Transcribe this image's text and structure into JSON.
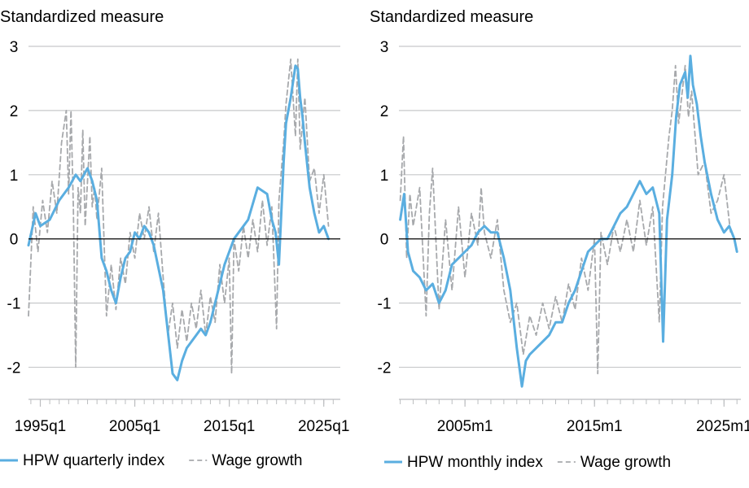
{
  "chart_data": [
    {
      "type": "line",
      "ylabel": "Standardized measure",
      "ylim": [
        -2.5,
        3
      ],
      "yticks": [
        3,
        2,
        1,
        0,
        -1,
        -2
      ],
      "xlim": [
        1993.75,
        2026.75
      ],
      "xticks": [
        {
          "label": "1995q1",
          "value": 1995
        },
        {
          "label": "2005q1",
          "value": 2005
        },
        {
          "label": "2015q1",
          "value": 2015
        },
        {
          "label": "2025q1",
          "value": 2025
        }
      ],
      "grid": true,
      "legend_position": "bottom",
      "series": [
        {
          "name": "HPW quarterly index",
          "color": "#5aaee0",
          "style": "solid",
          "x": [
            1993.75,
            1994.5,
            1995.0,
            1996.0,
            1997.0,
            1998.0,
            1998.75,
            1999.25,
            2000.0,
            2000.5,
            2001.0,
            2001.5,
            2002.0,
            2002.5,
            2003.0,
            2003.5,
            2004.0,
            2004.5,
            2005.0,
            2005.5,
            2006.0,
            2006.5,
            2007.0,
            2008.0,
            2009.0,
            2009.5,
            2010.0,
            2010.5,
            2011.0,
            2011.5,
            2012.0,
            2012.5,
            2013.0,
            2013.5,
            2014.0,
            2014.5,
            2015.0,
            2015.5,
            2016.0,
            2017.0,
            2018.0,
            2019.0,
            2019.5,
            2019.9,
            2020.25,
            2020.75,
            2021.0,
            2021.5,
            2022.0,
            2022.25,
            2022.5,
            2022.75,
            2023.0,
            2023.5,
            2024.0,
            2024.5,
            2025.0,
            2025.5
          ],
          "values": [
            -0.1,
            0.4,
            0.2,
            0.3,
            0.6,
            0.8,
            1.0,
            0.9,
            1.1,
            0.9,
            0.6,
            -0.3,
            -0.5,
            -0.8,
            -1.0,
            -0.6,
            -0.3,
            -0.2,
            0.1,
            0.0,
            0.2,
            0.1,
            -0.1,
            -0.8,
            -2.1,
            -2.2,
            -1.9,
            -1.7,
            -1.6,
            -1.5,
            -1.4,
            -1.5,
            -1.3,
            -1.0,
            -0.7,
            -0.4,
            -0.2,
            0.0,
            0.1,
            0.3,
            0.8,
            0.7,
            0.3,
            0.1,
            -0.4,
            1.2,
            1.8,
            2.2,
            2.7,
            2.65,
            2.2,
            1.9,
            1.5,
            0.8,
            0.4,
            0.1,
            0.2,
            0.0
          ]
        },
        {
          "name": "Wage growth",
          "color": "#a7a9ac",
          "style": "dashed",
          "x": [
            1993.75,
            1994.25,
            1994.75,
            1995.25,
            1995.75,
            1996.25,
            1996.75,
            1997.25,
            1997.75,
            1998.0,
            1998.25,
            1998.5,
            1998.75,
            1999.0,
            1999.25,
            1999.5,
            1999.75,
            2000.0,
            2000.25,
            2000.5,
            2000.75,
            2001.0,
            2001.5,
            2002.0,
            2002.5,
            2003.0,
            2003.5,
            2004.0,
            2004.5,
            2005.0,
            2005.5,
            2006.0,
            2006.5,
            2007.0,
            2007.5,
            2008.0,
            2008.5,
            2009.0,
            2009.5,
            2010.0,
            2010.5,
            2011.0,
            2011.5,
            2012.0,
            2012.5,
            2013.0,
            2013.5,
            2014.0,
            2014.5,
            2015.0,
            2015.25,
            2015.5,
            2016.0,
            2016.5,
            2017.0,
            2017.5,
            2018.0,
            2018.5,
            2019.0,
            2019.5,
            2020.0,
            2020.25,
            2020.75,
            2021.0,
            2021.5,
            2022.0,
            2022.25,
            2022.5,
            2023.0,
            2023.5,
            2024.0,
            2024.5,
            2025.0,
            2025.5
          ],
          "values": [
            -1.2,
            0.5,
            -0.2,
            0.6,
            0.1,
            0.9,
            0.4,
            1.5,
            2.0,
            0.7,
            2.0,
            0.5,
            -2.0,
            0.8,
            0.4,
            1.7,
            0.2,
            0.9,
            1.6,
            0.5,
            0.8,
            0.3,
            1.1,
            -1.2,
            -0.4,
            -1.1,
            -0.3,
            -0.7,
            0.1,
            -0.3,
            0.4,
            0.0,
            0.5,
            -0.2,
            0.4,
            -0.6,
            -1.5,
            -1.0,
            -1.7,
            -1.1,
            -1.6,
            -1.0,
            -1.4,
            -0.8,
            -1.5,
            -0.9,
            -1.3,
            -0.4,
            -1.0,
            -0.3,
            -2.1,
            0.0,
            -0.5,
            0.2,
            -0.3,
            0.3,
            -0.2,
            0.6,
            -0.1,
            0.5,
            -1.4,
            0.6,
            1.5,
            2.1,
            2.8,
            1.6,
            2.8,
            1.4,
            2.2,
            0.9,
            1.1,
            0.4,
            1.0,
            0.2
          ]
        }
      ]
    },
    {
      "type": "line",
      "ylabel": "Standardized measure",
      "ylim": [
        -2.5,
        3
      ],
      "yticks": [
        3,
        2,
        1,
        0,
        -1,
        -2
      ],
      "xlim": [
        1999.9,
        2026.3
      ],
      "xticks": [
        {
          "label": "2005m1",
          "value": 2005
        },
        {
          "label": "2015m1",
          "value": 2015
        },
        {
          "label": "2025m1",
          "value": 2025
        }
      ],
      "grid": true,
      "legend_position": "bottom",
      "series": [
        {
          "name": "HPW monthly index",
          "color": "#5aaee0",
          "style": "solid",
          "x": [
            2000.0,
            2000.3,
            2000.6,
            2001.0,
            2001.5,
            2002.0,
            2002.5,
            2003.0,
            2003.5,
            2004.0,
            2004.5,
            2005.0,
            2005.5,
            2006.0,
            2006.5,
            2007.0,
            2007.5,
            2008.0,
            2008.5,
            2009.0,
            2009.4,
            2009.7,
            2010.0,
            2010.5,
            2011.0,
            2011.5,
            2012.0,
            2012.5,
            2013.0,
            2013.5,
            2014.0,
            2014.5,
            2015.0,
            2015.5,
            2016.0,
            2016.5,
            2017.0,
            2017.5,
            2018.0,
            2018.5,
            2019.0,
            2019.5,
            2020.0,
            2020.3,
            2020.6,
            2021.0,
            2021.3,
            2021.6,
            2022.0,
            2022.2,
            2022.4,
            2022.6,
            2022.9,
            2023.2,
            2023.5,
            2024.0,
            2024.5,
            2025.0,
            2025.4,
            2025.8,
            2026.0
          ],
          "values": [
            0.3,
            0.7,
            -0.2,
            -0.5,
            -0.6,
            -0.8,
            -0.7,
            -1.0,
            -0.8,
            -0.4,
            -0.3,
            -0.2,
            -0.1,
            0.1,
            0.2,
            0.1,
            0.1,
            -0.3,
            -0.8,
            -1.7,
            -2.3,
            -1.9,
            -1.8,
            -1.7,
            -1.6,
            -1.5,
            -1.3,
            -1.3,
            -1.0,
            -0.8,
            -0.5,
            -0.2,
            -0.1,
            0.0,
            0.0,
            0.2,
            0.4,
            0.5,
            0.7,
            0.9,
            0.7,
            0.8,
            0.4,
            -1.6,
            0.3,
            1.0,
            1.9,
            2.4,
            2.6,
            2.2,
            2.85,
            2.4,
            2.1,
            1.6,
            1.2,
            0.7,
            0.3,
            0.1,
            0.2,
            0.0,
            -0.2
          ]
        },
        {
          "name": "Wage growth",
          "color": "#a7a9ac",
          "style": "dashed",
          "x": [
            2000.0,
            2000.25,
            2000.5,
            2000.75,
            2001.0,
            2001.5,
            2002.0,
            2002.25,
            2002.5,
            2003.0,
            2003.5,
            2004.0,
            2004.5,
            2005.0,
            2005.5,
            2006.0,
            2006.25,
            2006.5,
            2007.0,
            2007.5,
            2008.0,
            2008.5,
            2009.0,
            2009.5,
            2010.0,
            2010.5,
            2011.0,
            2011.5,
            2012.0,
            2012.5,
            2013.0,
            2013.5,
            2014.0,
            2014.5,
            2015.0,
            2015.25,
            2015.5,
            2016.0,
            2016.5,
            2017.0,
            2017.5,
            2018.0,
            2018.5,
            2019.0,
            2019.5,
            2020.0,
            2020.25,
            2020.75,
            2021.0,
            2021.25,
            2021.5,
            2022.0,
            2022.25,
            2022.5,
            2023.0,
            2023.5,
            2024.0,
            2024.5,
            2025.0,
            2025.5
          ],
          "values": [
            0.6,
            1.6,
            -0.3,
            0.7,
            0.2,
            0.8,
            -1.2,
            0.4,
            1.1,
            -1.1,
            0.3,
            -0.8,
            0.5,
            -0.6,
            0.4,
            -0.1,
            0.8,
            0.1,
            -0.3,
            0.3,
            -0.8,
            -1.3,
            -1.0,
            -1.8,
            -1.2,
            -1.5,
            -1.0,
            -1.4,
            -0.9,
            -1.3,
            -0.7,
            -1.1,
            -0.3,
            -0.8,
            0.0,
            -2.1,
            0.1,
            -0.4,
            0.2,
            -0.2,
            0.3,
            -0.2,
            0.6,
            -0.1,
            0.5,
            -1.3,
            0.5,
            1.6,
            2.0,
            2.7,
            1.8,
            2.7,
            1.9,
            2.3,
            1.0,
            1.2,
            0.4,
            0.6,
            1.0,
            0.1
          ]
        }
      ]
    }
  ]
}
